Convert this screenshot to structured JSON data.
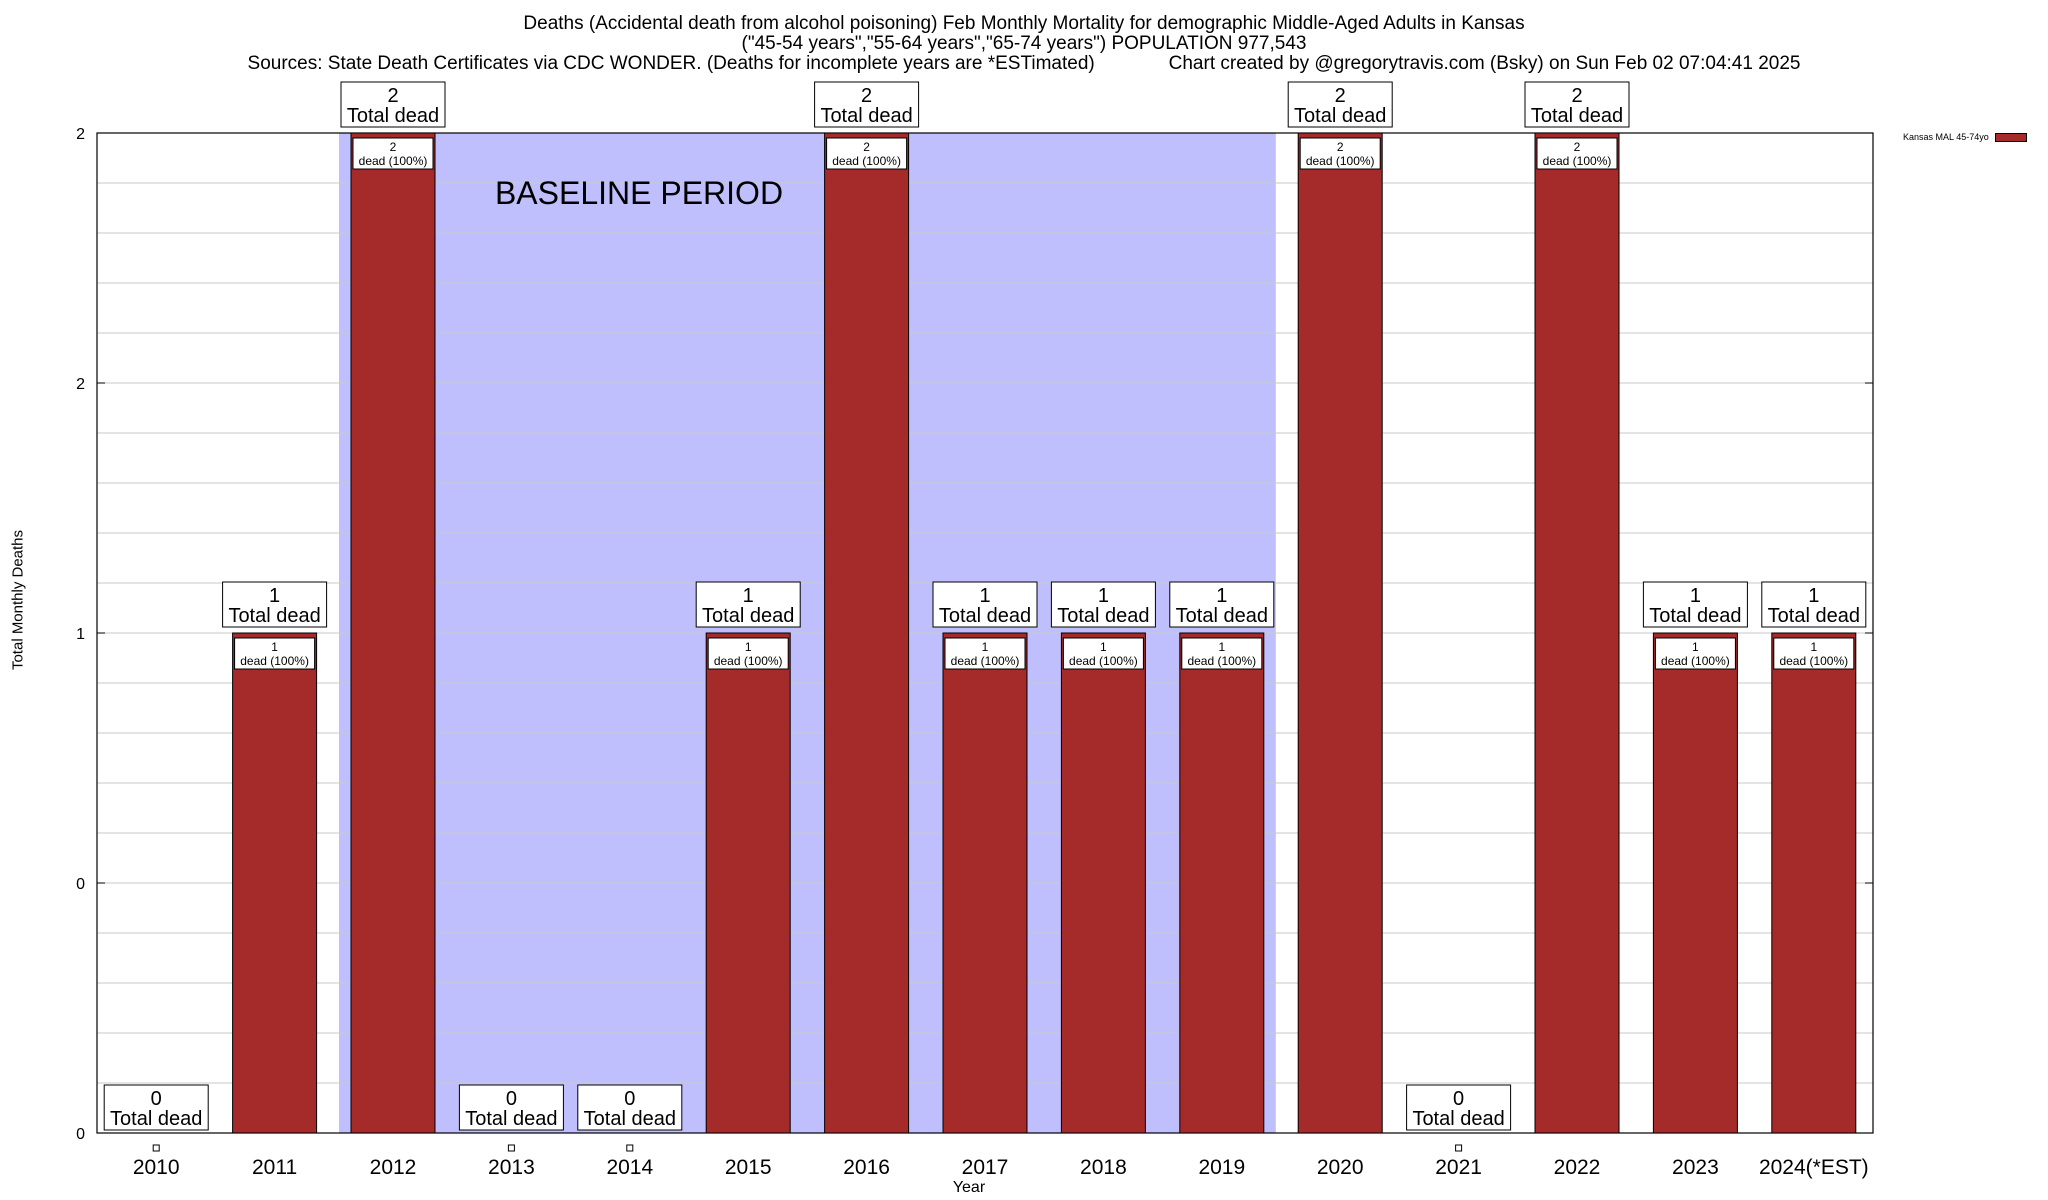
{
  "chart_data": {
    "type": "bar",
    "title_lines": [
      "Deaths (Accidental death from alcohol poisoning) Feb Monthly Mortality for demographic Middle-Aged Adults in Kansas",
      "(\"45-54 years\",\"55-64 years\",\"65-74 years\") POPULATION 977,543",
      "Sources: State Death Certificates via CDC WONDER. (Deaths for incomplete years are *ESTimated)              Chart created by @gregorytravis.com (Bsky) on Sun Feb 02 07:04:41 2025"
    ],
    "xlabel": "Year",
    "ylabel": "Total Monthly Deaths",
    "categories": [
      "2010",
      "2011",
      "2012",
      "2013",
      "2014",
      "2015",
      "2016",
      "2017",
      "2018",
      "2019",
      "2020",
      "2021",
      "2022",
      "2023",
      "2024(*EST)"
    ],
    "series": [
      {
        "name": "Kansas MAL 45-74yo",
        "color": "#a52a2a",
        "values": [
          0,
          1,
          2,
          0,
          0,
          1,
          2,
          1,
          1,
          1,
          2,
          0,
          2,
          1,
          1
        ]
      }
    ],
    "ylim": [
      0,
      2
    ],
    "y_tick_values": [
      0,
      0.5,
      1,
      1.5,
      2
    ],
    "y_tick_labels": [
      "0",
      "0",
      "1",
      "2",
      "2"
    ],
    "total_label": "Total dead",
    "inner_label_template": "dead (100%)",
    "baseline": {
      "label": "BASELINE PERIOD",
      "start": "2012",
      "end": "2019",
      "color": "#bfbffe"
    },
    "grid": true,
    "legend_position": "top-right"
  }
}
